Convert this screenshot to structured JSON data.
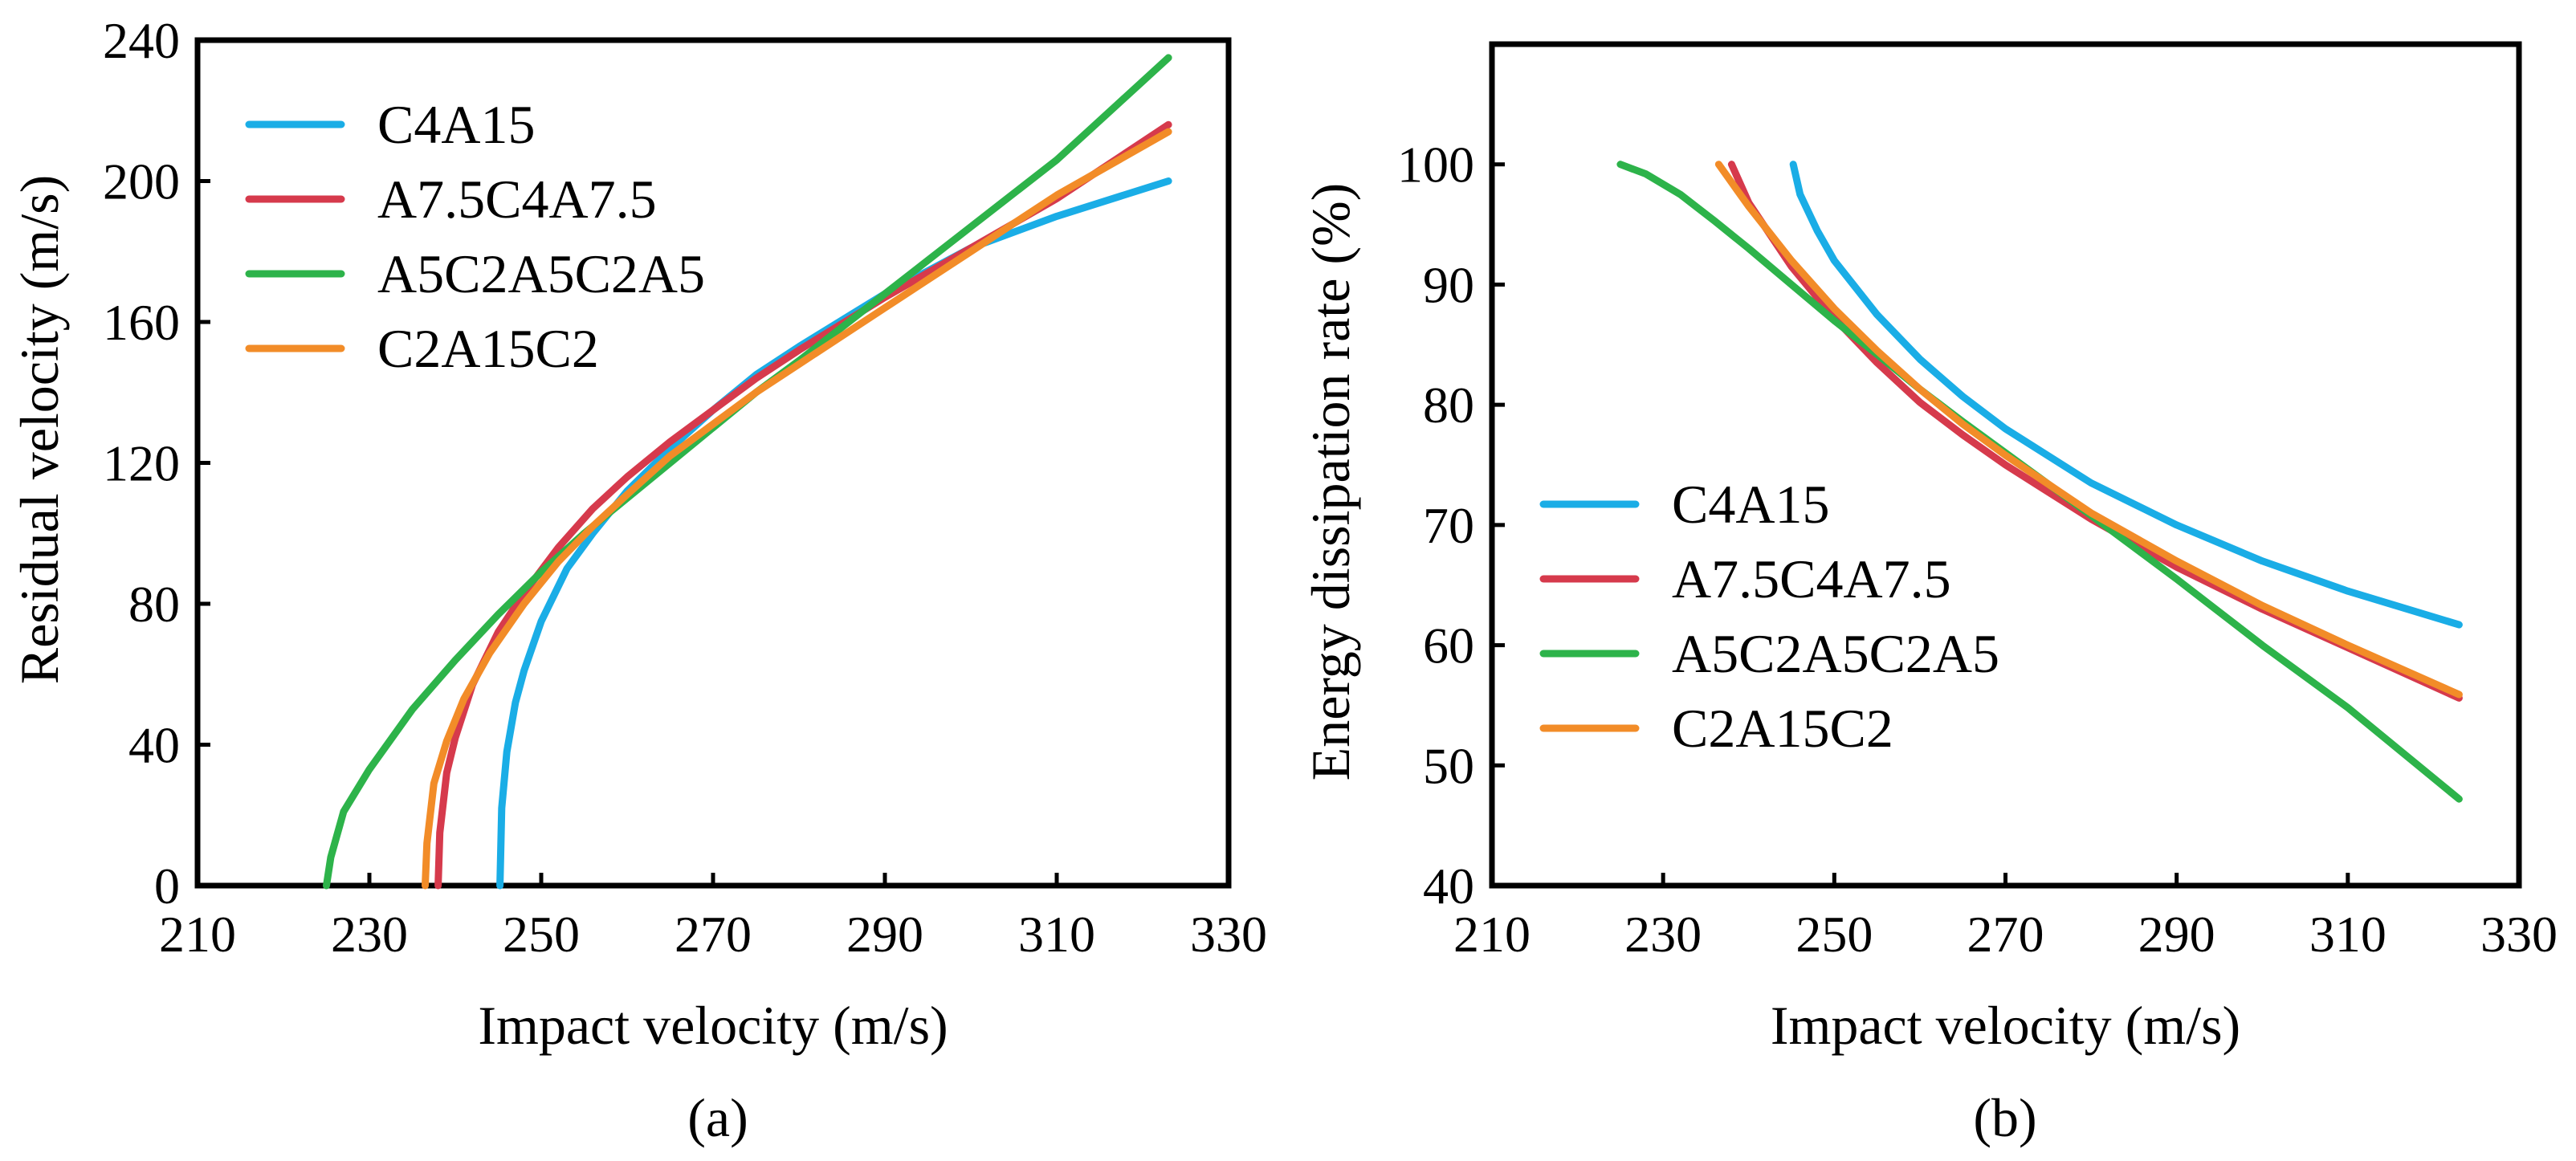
{
  "figure": {
    "panels": [
      "(a)",
      "(b)"
    ]
  },
  "chart_data": [
    {
      "type": "line",
      "panel_label": "(a)",
      "xlabel": "Impact velocity (m/s)",
      "ylabel": "Residual velocity (m/s)",
      "xlim": [
        210,
        330
      ],
      "ylim": [
        0,
        240
      ],
      "xticks": [
        210,
        230,
        250,
        270,
        290,
        310,
        330
      ],
      "yticks": [
        0,
        40,
        80,
        120,
        160,
        200,
        240
      ],
      "legend_position": "top-left",
      "series": [
        {
          "name": "C4A15",
          "color": "#1aade6",
          "x": [
            245.2,
            245.4,
            246,
            247,
            248,
            250,
            253,
            256,
            260,
            265,
            270,
            275,
            280,
            290,
            300,
            310,
            323
          ],
          "y": [
            0,
            22,
            38,
            52,
            61,
            75,
            90,
            100,
            112,
            124,
            135,
            145,
            153,
            168,
            181,
            190,
            200
          ]
        },
        {
          "name": "A7.5C4A7.5",
          "color": "#d63a4c",
          "x": [
            238.0,
            238.2,
            239,
            240,
            242,
            245,
            248,
            252,
            256,
            260,
            265,
            270,
            275,
            280,
            290,
            300,
            310,
            323
          ],
          "y": [
            0,
            15,
            32,
            42,
            57,
            72,
            83,
            96,
            107,
            116,
            126,
            135,
            144,
            152,
            167,
            181,
            195,
            216
          ]
        },
        {
          "name": "A5C2A5C2A5",
          "color": "#2db34a",
          "x": [
            225.0,
            225.5,
            227,
            230,
            235,
            240,
            245,
            250,
            255,
            260,
            265,
            270,
            275,
            280,
            290,
            300,
            310,
            323
          ],
          "y": [
            0,
            8,
            21,
            33,
            50,
            64,
            77,
            89,
            100,
            110,
            120,
            130,
            140,
            149,
            168,
            187,
            206,
            235
          ]
        },
        {
          "name": "C2A15C2",
          "color": "#f28c28",
          "x": [
            236.5,
            236.7,
            237.5,
            239,
            241,
            244,
            248,
            252,
            256,
            260,
            265,
            270,
            275,
            280,
            290,
            300,
            310,
            323
          ],
          "y": [
            0,
            12,
            29,
            41,
            53,
            66,
            80,
            92,
            102,
            111,
            122,
            131,
            140,
            148,
            164,
            180,
            196,
            214
          ]
        }
      ]
    },
    {
      "type": "line",
      "panel_label": "(b)",
      "xlabel": "Impact velocity (m/s)",
      "ylabel": "Energy dissipation rate (%)",
      "xlim": [
        210,
        330
      ],
      "ylim": [
        40,
        110
      ],
      "xticks": [
        210,
        230,
        250,
        270,
        290,
        310,
        330
      ],
      "yticks": [
        40,
        50,
        60,
        70,
        80,
        90,
        100
      ],
      "legend_position": "center-left",
      "series": [
        {
          "name": "C4A15",
          "color": "#1aade6",
          "x": [
            245.2,
            246,
            248,
            250,
            255,
            260,
            265,
            270,
            280,
            290,
            300,
            310,
            323
          ],
          "y": [
            100,
            97.5,
            94.5,
            92,
            87.5,
            83.8,
            80.7,
            78,
            73.5,
            70,
            67,
            64.5,
            61.7
          ]
        },
        {
          "name": "A7.5C4A7.5",
          "color": "#d63a4c",
          "x": [
            238.0,
            240,
            245,
            250,
            255,
            260,
            265,
            270,
            280,
            290,
            300,
            310,
            323
          ],
          "y": [
            100,
            96.8,
            91.5,
            87.2,
            83.5,
            80.2,
            77.5,
            75,
            70.5,
            66.5,
            63,
            59.8,
            55.6
          ]
        },
        {
          "name": "A5C2A5C2A5",
          "color": "#2db34a",
          "x": [
            225.0,
            228,
            232,
            236,
            240,
            245,
            250,
            255,
            260,
            265,
            270,
            280,
            290,
            300,
            310,
            323
          ],
          "y": [
            100,
            99.2,
            97.5,
            95.3,
            93,
            90,
            87,
            84.2,
            81.3,
            78.6,
            76,
            70.8,
            65.5,
            60,
            54.8,
            47.2
          ]
        },
        {
          "name": "C2A15C2",
          "color": "#f28c28",
          "x": [
            236.5,
            238,
            240,
            245,
            250,
            255,
            260,
            265,
            270,
            280,
            290,
            300,
            310,
            323
          ],
          "y": [
            100,
            98.5,
            96.5,
            92,
            88,
            84.5,
            81.3,
            78.4,
            75.8,
            71,
            67,
            63.3,
            60,
            55.9
          ]
        }
      ]
    }
  ]
}
